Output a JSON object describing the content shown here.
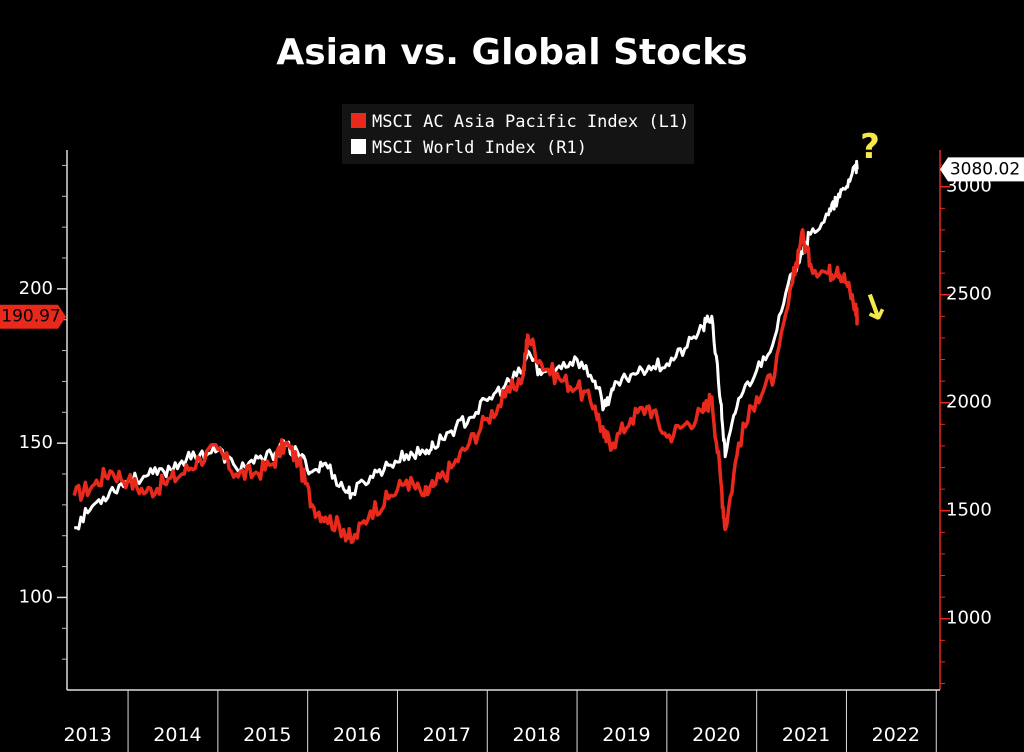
{
  "chart_data": {
    "type": "line",
    "title": "Asian vs. Global Stocks",
    "legend_placement": "top-center",
    "x_tick_labels": [
      "2013",
      "2014",
      "2015",
      "2016",
      "2017",
      "2018",
      "2019",
      "2020",
      "2021",
      "2022"
    ],
    "left_axis": {
      "ticks": [
        "100",
        "150",
        "200"
      ],
      "range": [
        70,
        245
      ],
      "last_value_label": "190.97"
    },
    "right_axis": {
      "ticks": [
        "1000",
        "1500",
        "2000",
        "2500",
        "3000"
      ],
      "range": [
        670,
        3170
      ],
      "last_value_label": "3080.02"
    },
    "colors": {
      "asia": "#e8291c",
      "world": "#ffffff",
      "annotation": "#f5e84a",
      "background": "#000000"
    },
    "series": [
      {
        "name": "MSCI AC Asia Pacific Index  (L1)",
        "axis": "left",
        "color": "#e8291c",
        "x": [
          2013.0,
          2013.2,
          2013.4,
          2013.6,
          2013.8,
          2014.0,
          2014.2,
          2014.4,
          2014.6,
          2014.8,
          2015.0,
          2015.2,
          2015.35,
          2015.5,
          2015.65,
          2015.8,
          2016.0,
          2016.1,
          2016.3,
          2016.5,
          2016.7,
          2016.9,
          2017.0,
          2017.2,
          2017.4,
          2017.6,
          2017.8,
          2018.0,
          2018.05,
          2018.2,
          2018.4,
          2018.6,
          2018.8,
          2018.9,
          2019.0,
          2019.2,
          2019.4,
          2019.6,
          2019.8,
          2020.0,
          2020.1,
          2020.2,
          2020.25,
          2020.4,
          2020.6,
          2020.8,
          2021.0,
          2021.1,
          2021.2,
          2021.4,
          2021.5,
          2021.6,
          2021.7,
          2021.72
        ],
        "values": [
          133,
          136,
          141,
          138,
          134,
          137,
          140,
          145,
          148,
          140,
          140,
          143,
          150,
          144,
          130,
          126,
          122,
          118,
          128,
          132,
          138,
          133,
          136,
          142,
          150,
          158,
          165,
          172,
          185,
          176,
          171,
          168,
          162,
          152,
          150,
          158,
          162,
          152,
          156,
          160,
          165,
          138,
          122,
          150,
          165,
          172,
          202,
          218,
          208,
          205,
          207,
          202,
          194,
          190.97
        ]
      },
      {
        "name": "MSCI World Index  (R1)",
        "axis": "right",
        "color": "#ffffff",
        "x": [
          2013.0,
          2013.2,
          2013.4,
          2013.6,
          2013.8,
          2014.0,
          2014.2,
          2014.4,
          2014.6,
          2014.8,
          2015.0,
          2015.2,
          2015.35,
          2015.5,
          2015.65,
          2015.8,
          2016.0,
          2016.1,
          2016.3,
          2016.5,
          2016.7,
          2016.9,
          2017.0,
          2017.2,
          2017.4,
          2017.6,
          2017.8,
          2018.0,
          2018.05,
          2018.2,
          2018.4,
          2018.6,
          2018.8,
          2018.9,
          2019.0,
          2019.2,
          2019.4,
          2019.6,
          2019.8,
          2020.0,
          2020.1,
          2020.2,
          2020.25,
          2020.4,
          2020.6,
          2020.8,
          2021.0,
          2021.1,
          2021.2,
          2021.4,
          2021.5,
          2021.6,
          2021.7,
          2021.72
        ],
        "values": [
          1420,
          1520,
          1590,
          1640,
          1660,
          1680,
          1730,
          1760,
          1780,
          1700,
          1720,
          1760,
          1800,
          1760,
          1680,
          1720,
          1600,
          1580,
          1660,
          1710,
          1760,
          1770,
          1800,
          1870,
          1930,
          2010,
          2080,
          2150,
          2240,
          2130,
          2170,
          2200,
          2100,
          1980,
          2060,
          2130,
          2170,
          2180,
          2250,
          2350,
          2400,
          2000,
          1750,
          2020,
          2150,
          2300,
          2600,
          2700,
          2780,
          2870,
          2940,
          3000,
          3100,
          3080.02
        ]
      }
    ],
    "annotations": [
      {
        "text": "?",
        "color": "#f5e84a"
      },
      {
        "text": "↓",
        "color": "#f5e84a"
      }
    ]
  }
}
